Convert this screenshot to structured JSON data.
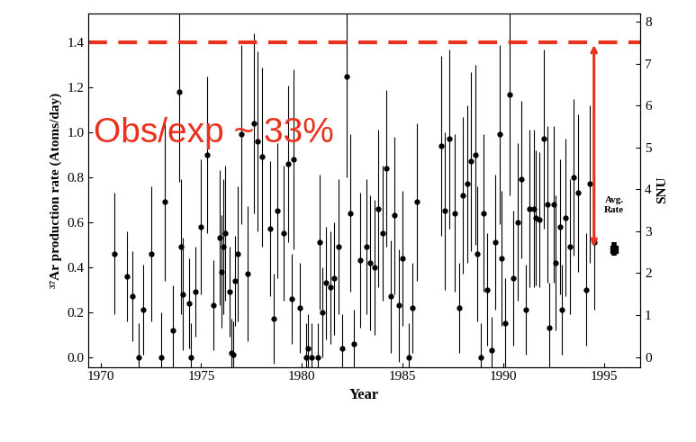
{
  "chart_data": {
    "type": "scatter",
    "xlabel": "Year",
    "ylabel": "³⁷Ar production rate (Atoms/day)",
    "y2label": "SNU",
    "color": "#000000",
    "marker": "circle",
    "x": [
      1970.7,
      1971.3,
      1971.6,
      1971.9,
      1972.1,
      1972.5,
      1973.0,
      1973.2,
      1973.6,
      1973.9,
      1974.0,
      1974.1,
      1974.4,
      1974.5,
      1974.7,
      1975.0,
      1975.3,
      1975.6,
      1975.9,
      1976.0,
      1976.1,
      1976.2,
      1976.4,
      1976.5,
      1976.6,
      1976.7,
      1976.8,
      1977.0,
      1977.3,
      1977.6,
      1977.8,
      1978.0,
      1978.4,
      1978.6,
      1978.8,
      1979.1,
      1979.3,
      1979.5,
      1979.6,
      1979.9,
      1980.2,
      1980.3,
      1980.5,
      1980.8,
      1980.9,
      1981.0,
      1981.2,
      1981.4,
      1981.6,
      1981.8,
      1982.0,
      1982.2,
      1982.4,
      1982.6,
      1982.9,
      1983.2,
      1983.4,
      1983.6,
      1983.8,
      1984.0,
      1984.2,
      1984.4,
      1984.6,
      1984.8,
      1985.0,
      1985.3,
      1985.5,
      1985.7,
      1986.9,
      1987.1,
      1987.3,
      1987.6,
      1987.8,
      1988.0,
      1988.2,
      1988.4,
      1988.6,
      1988.7,
      1988.9,
      1989.0,
      1989.2,
      1989.4,
      1989.6,
      1989.8,
      1989.9,
      1990.1,
      1990.3,
      1990.5,
      1990.7,
      1990.9,
      1991.1,
      1991.3,
      1991.5,
      1991.6,
      1991.8,
      1992.0,
      1992.2,
      1992.3,
      1992.5,
      1992.6,
      1992.8,
      1992.9,
      1993.1,
      1993.3,
      1993.5,
      1993.7,
      1994.1,
      1994.3,
      1994.5
    ],
    "values": [
      0.46,
      0.36,
      0.27,
      0.0,
      0.21,
      0.46,
      0.0,
      0.69,
      0.12,
      1.18,
      0.49,
      0.28,
      0.24,
      0.0,
      0.29,
      0.58,
      0.9,
      0.23,
      0.53,
      0.38,
      0.49,
      0.55,
      0.29,
      0.02,
      0.01,
      0.34,
      0.46,
      0.99,
      0.37,
      1.04,
      0.96,
      0.89,
      0.57,
      0.17,
      0.65,
      0.55,
      0.86,
      0.26,
      0.88,
      0.22,
      0.0,
      0.04,
      0.0,
      0.0,
      0.51,
      0.2,
      0.33,
      0.31,
      0.35,
      0.49,
      0.04,
      1.25,
      0.64,
      0.06,
      0.43,
      0.49,
      0.42,
      0.4,
      0.66,
      0.55,
      0.84,
      0.27,
      0.63,
      0.23,
      0.44,
      0.0,
      0.22,
      0.69,
      0.94,
      0.65,
      0.97,
      0.64,
      0.22,
      0.72,
      0.77,
      0.87,
      0.9,
      0.46,
      0.0,
      0.64,
      0.3,
      0.03,
      0.51,
      0.99,
      0.44,
      0.15,
      1.17,
      0.35,
      0.6,
      0.79,
      0.21,
      0.66,
      0.66,
      0.62,
      0.61,
      0.97,
      0.68,
      0.13,
      0.68,
      0.42,
      0.58,
      0.21,
      0.62,
      0.49,
      0.8,
      0.73,
      0.3,
      0.77,
      0.51
    ],
    "errors": [
      0.27,
      0.2,
      0.2,
      0.15,
      0.2,
      0.3,
      0.2,
      0.35,
      0.2,
      0.4,
      0.3,
      0.25,
      0.2,
      0.15,
      0.2,
      0.3,
      0.35,
      0.2,
      0.3,
      0.25,
      0.3,
      0.3,
      0.2,
      0.15,
      0.15,
      0.2,
      0.3,
      0.4,
      0.3,
      0.4,
      0.4,
      0.4,
      0.3,
      0.2,
      0.3,
      0.3,
      0.35,
      0.2,
      0.4,
      0.2,
      0.15,
      0.15,
      0.15,
      0.15,
      0.3,
      0.2,
      0.25,
      0.25,
      0.25,
      0.3,
      0.15,
      0.45,
      0.35,
      0.15,
      0.3,
      0.3,
      0.3,
      0.3,
      0.35,
      0.3,
      0.35,
      0.25,
      0.35,
      0.25,
      0.3,
      0.15,
      0.2,
      0.35,
      0.4,
      0.35,
      0.4,
      0.35,
      0.2,
      0.35,
      0.35,
      0.4,
      0.4,
      0.3,
      0.15,
      0.35,
      0.25,
      0.15,
      0.3,
      0.4,
      0.3,
      0.2,
      0.45,
      0.3,
      0.35,
      0.35,
      0.2,
      0.35,
      0.35,
      0.3,
      0.3,
      0.4,
      0.35,
      0.2,
      0.35,
      0.3,
      0.3,
      0.2,
      0.35,
      0.3,
      0.35,
      0.35,
      0.25,
      0.35,
      0.3
    ],
    "average": {
      "label": "Avg.\nRate",
      "x": 1995.5,
      "value": 0.48,
      "error": 0.03
    },
    "expected": {
      "value": 1.4,
      "color": "#e8321e",
      "line_style": "dashed"
    },
    "annotation": {
      "text": "Obs/exp ~ 33%",
      "color": "#e8321e"
    },
    "xlim": [
      1969.4,
      1996.8
    ],
    "xticks": [
      1970,
      1975,
      1980,
      1985,
      1990,
      1995
    ],
    "ylim": [
      -0.044,
      1.53
    ],
    "yticks": [
      {
        "value": 0,
        "label": "0.0"
      },
      {
        "value": 0.2,
        "label": "0.2"
      },
      {
        "value": 0.4,
        "label": "0.4"
      },
      {
        "value": 0.6,
        "label": "0.6"
      },
      {
        "value": 0.8,
        "label": "0.8"
      },
      {
        "value": 1.0,
        "label": "1.0"
      },
      {
        "value": 1.2,
        "label": "1.2"
      },
      {
        "value": 1.4,
        "label": "1.4"
      }
    ],
    "y2lim": [
      -0.236,
      8.2
    ],
    "y2ticks": [
      0,
      1,
      2,
      3,
      4,
      5,
      6,
      7,
      8
    ],
    "grid": false
  }
}
